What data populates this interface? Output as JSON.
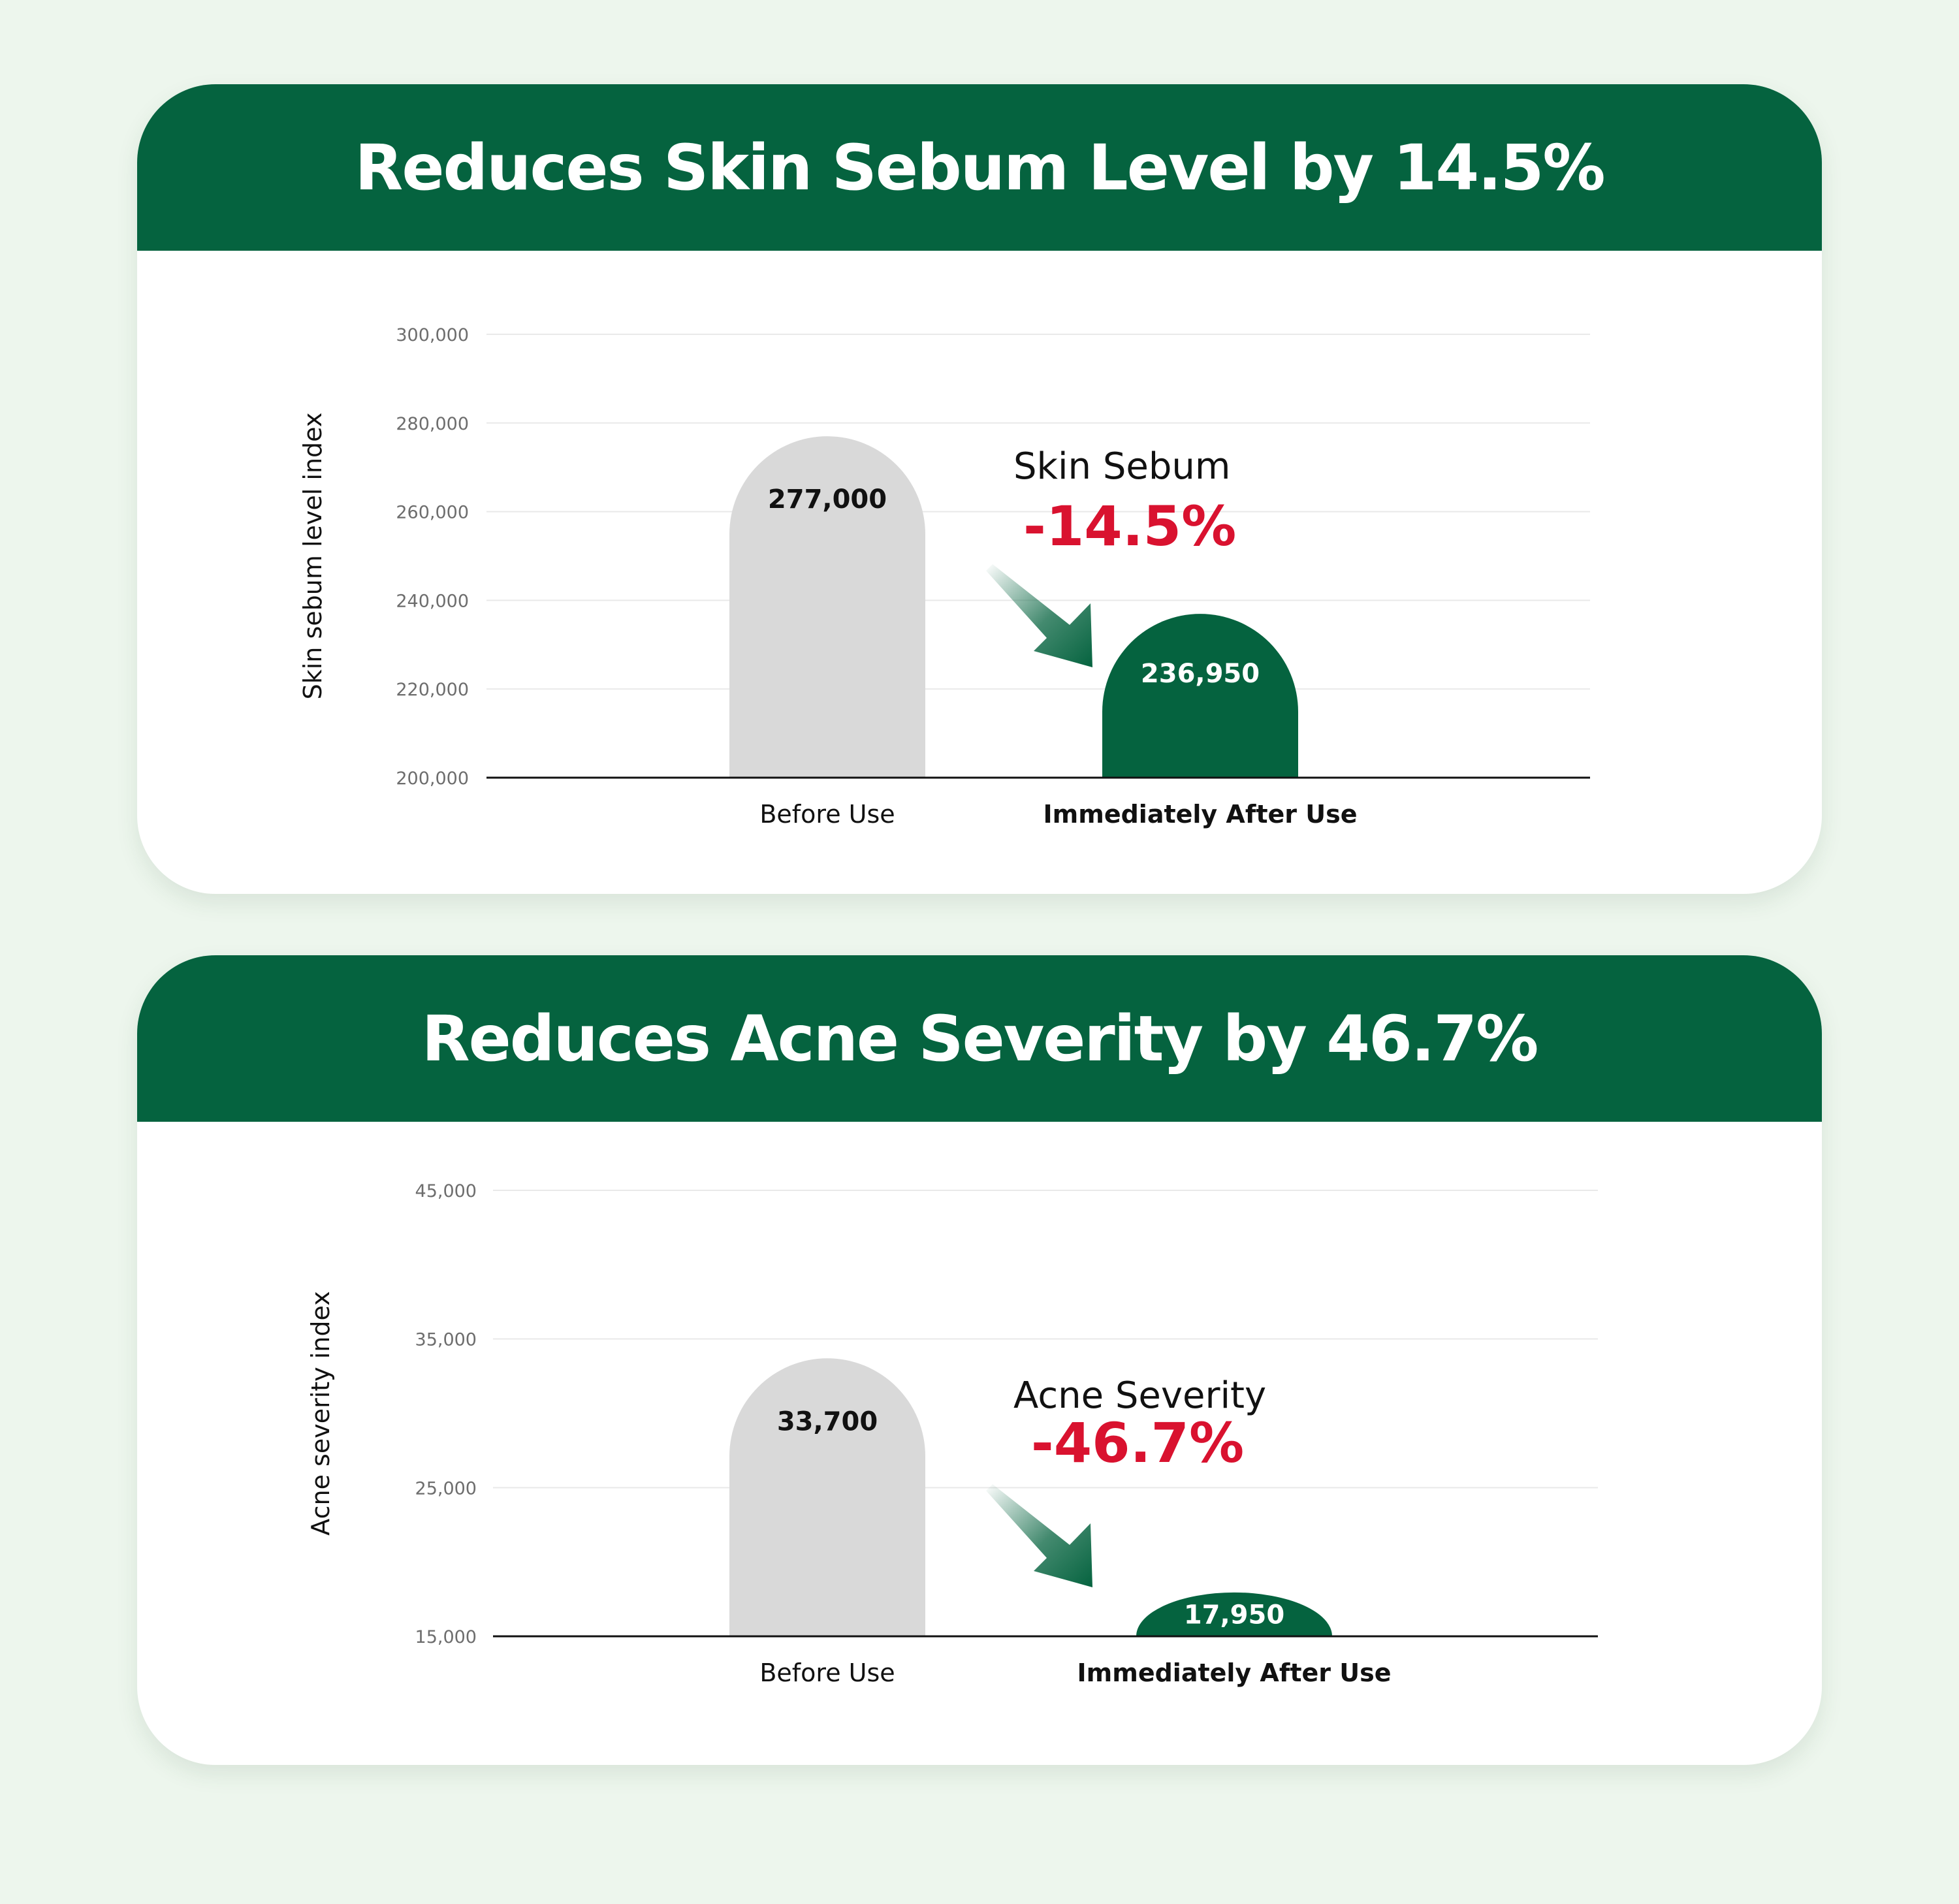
{
  "colors": {
    "background": "#edf6ed",
    "header": "#05633f",
    "before_bar": "#d9d9d9",
    "after_bar": "#05633f",
    "reduction_text": "#d9122f"
  },
  "chart_data": [
    {
      "type": "bar",
      "title": "Reduces Skin Sebum Level by 14.5%",
      "ylabel": "Skin sebum level index",
      "xlabel": "",
      "categories": [
        "Before Use",
        "Immediately After Use"
      ],
      "values": [
        277000,
        236950
      ],
      "value_labels": [
        "277,000",
        "236,950"
      ],
      "ylim": [
        200000,
        300000
      ],
      "yticks": [
        200000,
        220000,
        240000,
        260000,
        280000,
        300000
      ],
      "ytick_labels": [
        "200,000",
        "220,000",
        "240,000",
        "260,000",
        "280,000",
        "300,000"
      ],
      "grid": true,
      "annotation": {
        "label": "Skin Sebum",
        "change": "-14.5%"
      }
    },
    {
      "type": "bar",
      "title": "Reduces Acne Severity by 46.7%",
      "ylabel": "Acne severity index",
      "xlabel": "",
      "categories": [
        "Before Use",
        "Immediately After Use"
      ],
      "values": [
        33700,
        17950
      ],
      "value_labels": [
        "33,700",
        "17,950"
      ],
      "ylim": [
        15000,
        45000
      ],
      "yticks": [
        15000,
        25000,
        35000,
        45000
      ],
      "ytick_labels": [
        "15,000",
        "25,000",
        "35,000",
        "45,000"
      ],
      "grid": true,
      "annotation": {
        "label": "Acne Severity",
        "change": "-46.7%"
      }
    }
  ]
}
